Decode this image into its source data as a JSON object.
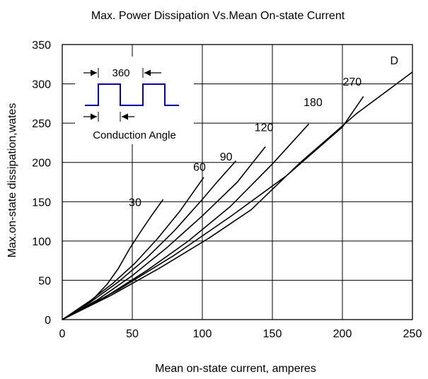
{
  "chart_data": {
    "type": "line",
    "title": "Max. Power  Dissipation Vs.Mean  On-state  Current",
    "xlabel": "Mean on-state  current, amperes",
    "ylabel": "Max.on-state dissipation,wates",
    "xlim": [
      0,
      250
    ],
    "ylim": [
      0,
      350
    ],
    "xticks": [
      0,
      50,
      100,
      150,
      200,
      250
    ],
    "yticks": [
      0,
      50,
      100,
      150,
      200,
      250,
      300,
      350
    ],
    "grid": true,
    "series": [
      {
        "name": "30",
        "points": [
          [
            0,
            0
          ],
          [
            12,
            12
          ],
          [
            22,
            26
          ],
          [
            32,
            45
          ],
          [
            40,
            65
          ],
          [
            48,
            90
          ],
          [
            56,
            112
          ],
          [
            64,
            133
          ],
          [
            72,
            153
          ]
        ]
      },
      {
        "name": "60",
        "points": [
          [
            0,
            0
          ],
          [
            20,
            24
          ],
          [
            36,
            46
          ],
          [
            52,
            72
          ],
          [
            68,
            103
          ],
          [
            84,
            138
          ],
          [
            101,
            181
          ]
        ]
      },
      {
        "name": "90",
        "points": [
          [
            0,
            0
          ],
          [
            20,
            22
          ],
          [
            40,
            48
          ],
          [
            60,
            78
          ],
          [
            80,
            113
          ],
          [
            100,
            153
          ],
          [
            110,
            174
          ],
          [
            124,
            202
          ]
        ]
      },
      {
        "name": "120",
        "points": [
          [
            0,
            0
          ],
          [
            25,
            25
          ],
          [
            50,
            56
          ],
          [
            75,
            92
          ],
          [
            100,
            132
          ],
          [
            125,
            175
          ],
          [
            145,
            220
          ]
        ]
      },
      {
        "name": "180",
        "points": [
          [
            0,
            0
          ],
          [
            30,
            28
          ],
          [
            60,
            62
          ],
          [
            90,
            100
          ],
          [
            120,
            144
          ],
          [
            150,
            198
          ],
          [
            176,
            249
          ]
        ]
      },
      {
        "name": "270",
        "points": [
          [
            0,
            0
          ],
          [
            40,
            38
          ],
          [
            80,
            82
          ],
          [
            120,
            131
          ],
          [
            160,
            183
          ],
          [
            200,
            245
          ],
          [
            215,
            284
          ]
        ]
      },
      {
        "name": "D",
        "points": [
          [
            0,
            0
          ],
          [
            35,
            31
          ],
          [
            70,
            66
          ],
          [
            105,
            104
          ],
          [
            135,
            140
          ],
          [
            170,
            200
          ],
          [
            210,
            262
          ],
          [
            250,
            315
          ]
        ]
      }
    ],
    "series_labels": [
      {
        "text": "30",
        "at": [
          52,
          150
        ]
      },
      {
        "text": "60",
        "at": [
          98,
          195
        ]
      },
      {
        "text": "90",
        "at": [
          117,
          208
        ]
      },
      {
        "text": "120",
        "at": [
          144,
          245
        ]
      },
      {
        "text": "180",
        "at": [
          179,
          277
        ]
      },
      {
        "text": "270",
        "at": [
          207,
          303
        ]
      },
      {
        "text": "D",
        "at": [
          237,
          330
        ]
      }
    ],
    "inset": {
      "period_label": "360",
      "caption": "Conduction Angle"
    }
  }
}
